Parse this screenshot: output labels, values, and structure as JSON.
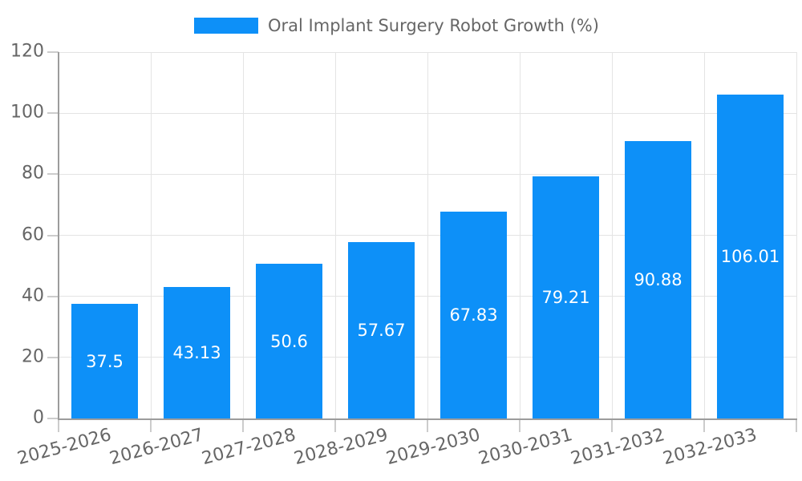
{
  "chart_data": {
    "type": "bar",
    "title": "Oral Implant Surgery Robot Growth (%)",
    "categories": [
      "2025-2026",
      "2026-2027",
      "2027-2028",
      "2028-2029",
      "2029-2030",
      "2030-2031",
      "2031-2032",
      "2032-2033"
    ],
    "values": [
      37.5,
      43.13,
      50.6,
      57.67,
      67.83,
      79.21,
      90.88,
      106.01
    ],
    "value_labels": [
      "37.5",
      "43.13",
      "50.6",
      "57.67",
      "67.83",
      "79.21",
      "90.88",
      "106.01"
    ],
    "xlabel": "",
    "ylabel": "",
    "ylim": [
      0,
      120
    ],
    "yticks": [
      0,
      20,
      40,
      60,
      80,
      100,
      120
    ],
    "ytick_labels": [
      "0",
      "20",
      "40",
      "60",
      "80",
      "100",
      "120"
    ],
    "grid": true,
    "legend_position": "top-center",
    "legend_label": "Oral Implant Surgery Robot Growth (%)",
    "bar_color": "#0D90F8",
    "value_label_color": "#FFFFFF",
    "axis_text_color": "#666666",
    "gridline_color": "#E4E4E4",
    "spine_color": "#9C9C9C",
    "tick_mark_color": "#CCCCCC",
    "background_color": "#FFFFFF"
  }
}
